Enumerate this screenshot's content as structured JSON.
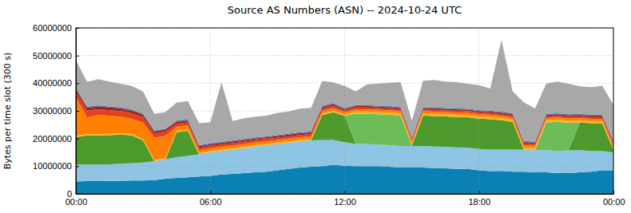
{
  "chart_data": {
    "type": "area",
    "title": "Source AS Numbers (ASN) -- 2024-10-24 UTC",
    "y_label": "Bytes per time slot (300 s)",
    "stacked": true,
    "grid": true,
    "x": [
      0,
      0.5,
      1,
      1.5,
      2,
      2.5,
      3,
      3.5,
      4,
      4.5,
      5,
      5.5,
      6,
      6.5,
      7,
      7.5,
      8,
      8.5,
      9,
      9.5,
      10,
      10.5,
      11,
      11.5,
      12,
      12.5,
      13,
      13.5,
      14,
      14.5,
      15,
      15.5,
      16,
      16.5,
      17,
      17.5,
      18,
      18.5,
      19,
      19.5,
      20,
      20.5,
      21,
      21.5,
      22,
      22.5,
      23,
      23.5,
      24
    ],
    "xlim": [
      0,
      24
    ],
    "xticks": [
      {
        "value": 0,
        "label": "00:00"
      },
      {
        "value": 6,
        "label": "06:00"
      },
      {
        "value": 12,
        "label": "12:00"
      },
      {
        "value": 18,
        "label": "18:00"
      },
      {
        "value": 24,
        "label": "00:00"
      }
    ],
    "ylim": [
      0,
      60000000
    ],
    "yticks": [
      0,
      10000000,
      20000000,
      30000000,
      40000000,
      50000000,
      60000000
    ],
    "series": [
      {
        "color": "#0a80b4",
        "values": [
          4500000,
          4600000,
          4600000,
          4700000,
          4700000,
          4800000,
          4800000,
          5000000,
          5500000,
          5800000,
          6000000,
          6300000,
          6500000,
          7000000,
          7200000,
          7500000,
          7800000,
          8000000,
          8500000,
          9000000,
          9500000,
          9800000,
          10000000,
          10500000,
          10200000,
          10000000,
          10000000,
          10000000,
          9800000,
          9500000,
          9500000,
          9500000,
          9300000,
          9200000,
          9000000,
          9000000,
          8500000,
          8200000,
          8300000,
          8000000,
          8000000,
          7800000,
          7800000,
          7500000,
          7500000,
          7800000,
          8000000,
          8500000,
          8500000
        ]
      },
      {
        "color": "#8ec4e4",
        "values": [
          6000000,
          6000000,
          6000000,
          6000000,
          6200000,
          6300000,
          6500000,
          6800000,
          7000000,
          7500000,
          7800000,
          8000000,
          8500000,
          8500000,
          8800000,
          9000000,
          9300000,
          9500000,
          9500000,
          9500000,
          9500000,
          9500000,
          9500000,
          9000000,
          8500000,
          8000000,
          8000000,
          7800000,
          7800000,
          7800000,
          7800000,
          7800000,
          7800000,
          7800000,
          7800000,
          7700000,
          7700000,
          7800000,
          7800000,
          8000000,
          8000000,
          8000000,
          8000000,
          8000000,
          8200000,
          8000000,
          7500000,
          7000000,
          6500000
        ]
      },
      {
        "color": "#4c9a2c",
        "values": [
          10000000,
          10500000,
          10500000,
          10500000,
          10500000,
          10000000,
          8000000,
          0,
          0,
          9000000,
          9000000,
          0,
          0,
          0,
          0,
          0,
          0,
          0,
          0,
          0,
          0,
          0,
          9000000,
          10000000,
          9500000,
          0,
          0,
          0,
          0,
          0,
          0,
          11000000,
          11000000,
          11000000,
          11000000,
          11000000,
          11000000,
          11000000,
          10500000,
          10000000,
          0,
          0,
          0,
          0,
          0,
          10000000,
          10000000,
          10000000,
          1000000
        ]
      },
      {
        "color": "#6cbc58",
        "values": [
          0,
          0,
          0,
          0,
          0,
          0,
          0,
          0,
          0,
          0,
          0,
          0,
          0,
          0,
          0,
          0,
          0,
          0,
          0,
          0,
          0,
          0,
          0,
          0,
          0,
          11000000,
          11000000,
          11000000,
          11000000,
          11000000,
          0,
          0,
          0,
          0,
          0,
          0,
          0,
          0,
          0,
          0,
          0,
          0,
          10000000,
          10500000,
          10000000,
          0,
          0,
          0,
          0
        ]
      },
      {
        "color": "#f4b41c",
        "values": [
          500000,
          500000,
          500000,
          500000,
          500000,
          500000,
          500000,
          500000,
          500000,
          500000,
          500000,
          500000,
          500000,
          500000,
          500000,
          500000,
          500000,
          500000,
          500000,
          500000,
          500000,
          500000,
          500000,
          500000,
          500000,
          800000,
          800000,
          800000,
          800000,
          800000,
          800000,
          800000,
          800000,
          800000,
          800000,
          800000,
          800000,
          800000,
          800000,
          800000,
          800000,
          800000,
          800000,
          800000,
          800000,
          800000,
          800000,
          800000,
          500000
        ]
      },
      {
        "color": "#ff7f00",
        "values": [
          14000000,
          6000000,
          7000000,
          6500000,
          6000000,
          5500000,
          6000000,
          8000000,
          8000000,
          1500000,
          1500000,
          1000000,
          1000000,
          1000000,
          1000000,
          1000000,
          1000000,
          1000000,
          1000000,
          1000000,
          1000000,
          1000000,
          1000000,
          1000000,
          800000,
          800000,
          800000,
          800000,
          800000,
          800000,
          800000,
          800000,
          800000,
          800000,
          800000,
          800000,
          800000,
          800000,
          800000,
          800000,
          800000,
          800000,
          800000,
          800000,
          800000,
          800000,
          800000,
          800000,
          1000000
        ]
      },
      {
        "color": "#e4401c",
        "values": [
          2000000,
          2500000,
          2000000,
          2000000,
          2000000,
          2000000,
          2000000,
          1500000,
          1500000,
          1000000,
          1000000,
          800000,
          800000,
          800000,
          800000,
          800000,
          800000,
          800000,
          800000,
          800000,
          800000,
          800000,
          800000,
          800000,
          600000,
          600000,
          600000,
          600000,
          600000,
          600000,
          600000,
          600000,
          600000,
          600000,
          600000,
          600000,
          600000,
          600000,
          600000,
          600000,
          600000,
          600000,
          600000,
          600000,
          600000,
          600000,
          600000,
          600000,
          800000
        ]
      },
      {
        "color": "#a41e1a",
        "values": [
          1000000,
          1000000,
          1000000,
          1000000,
          1000000,
          1000000,
          800000,
          700000,
          700000,
          700000,
          700000,
          600000,
          600000,
          600000,
          600000,
          600000,
          600000,
          600000,
          600000,
          600000,
          600000,
          600000,
          600000,
          600000,
          500000,
          500000,
          500000,
          500000,
          500000,
          500000,
          500000,
          500000,
          500000,
          500000,
          500000,
          500000,
          500000,
          500000,
          500000,
          500000,
          500000,
          500000,
          500000,
          500000,
          500000,
          500000,
          500000,
          500000,
          500000
        ]
      },
      {
        "color": "#4a6ea2",
        "values": [
          300000,
          400000,
          400000,
          400000,
          400000,
          400000,
          400000,
          400000,
          400000,
          500000,
          500000,
          400000,
          400000,
          400000,
          400000,
          400000,
          400000,
          400000,
          400000,
          400000,
          400000,
          400000,
          400000,
          400000,
          400000,
          400000,
          400000,
          400000,
          400000,
          400000,
          400000,
          400000,
          400000,
          400000,
          400000,
          400000,
          400000,
          400000,
          400000,
          400000,
          400000,
          400000,
          400000,
          400000,
          400000,
          400000,
          400000,
          400000,
          400000
        ]
      },
      {
        "color": "#a8a8a8",
        "values": [
          10000000,
          9000000,
          9500000,
          9000000,
          8500000,
          8500000,
          8000000,
          6000000,
          6000000,
          6500000,
          6500000,
          8000000,
          7500000,
          21500000,
          7000000,
          7500000,
          7500000,
          7500000,
          8000000,
          8000000,
          8500000,
          8500000,
          9000000,
          7500000,
          8000000,
          5000000,
          7500000,
          8000000,
          8500000,
          9000000,
          6000000,
          9500000,
          10000000,
          9500000,
          9500000,
          9000000,
          9000000,
          8000000,
          26000000,
          8000000,
          14000000,
          12000000,
          11000000,
          11500000,
          11000000,
          10000000,
          10000000,
          10500000,
          13000000
        ]
      }
    ]
  }
}
